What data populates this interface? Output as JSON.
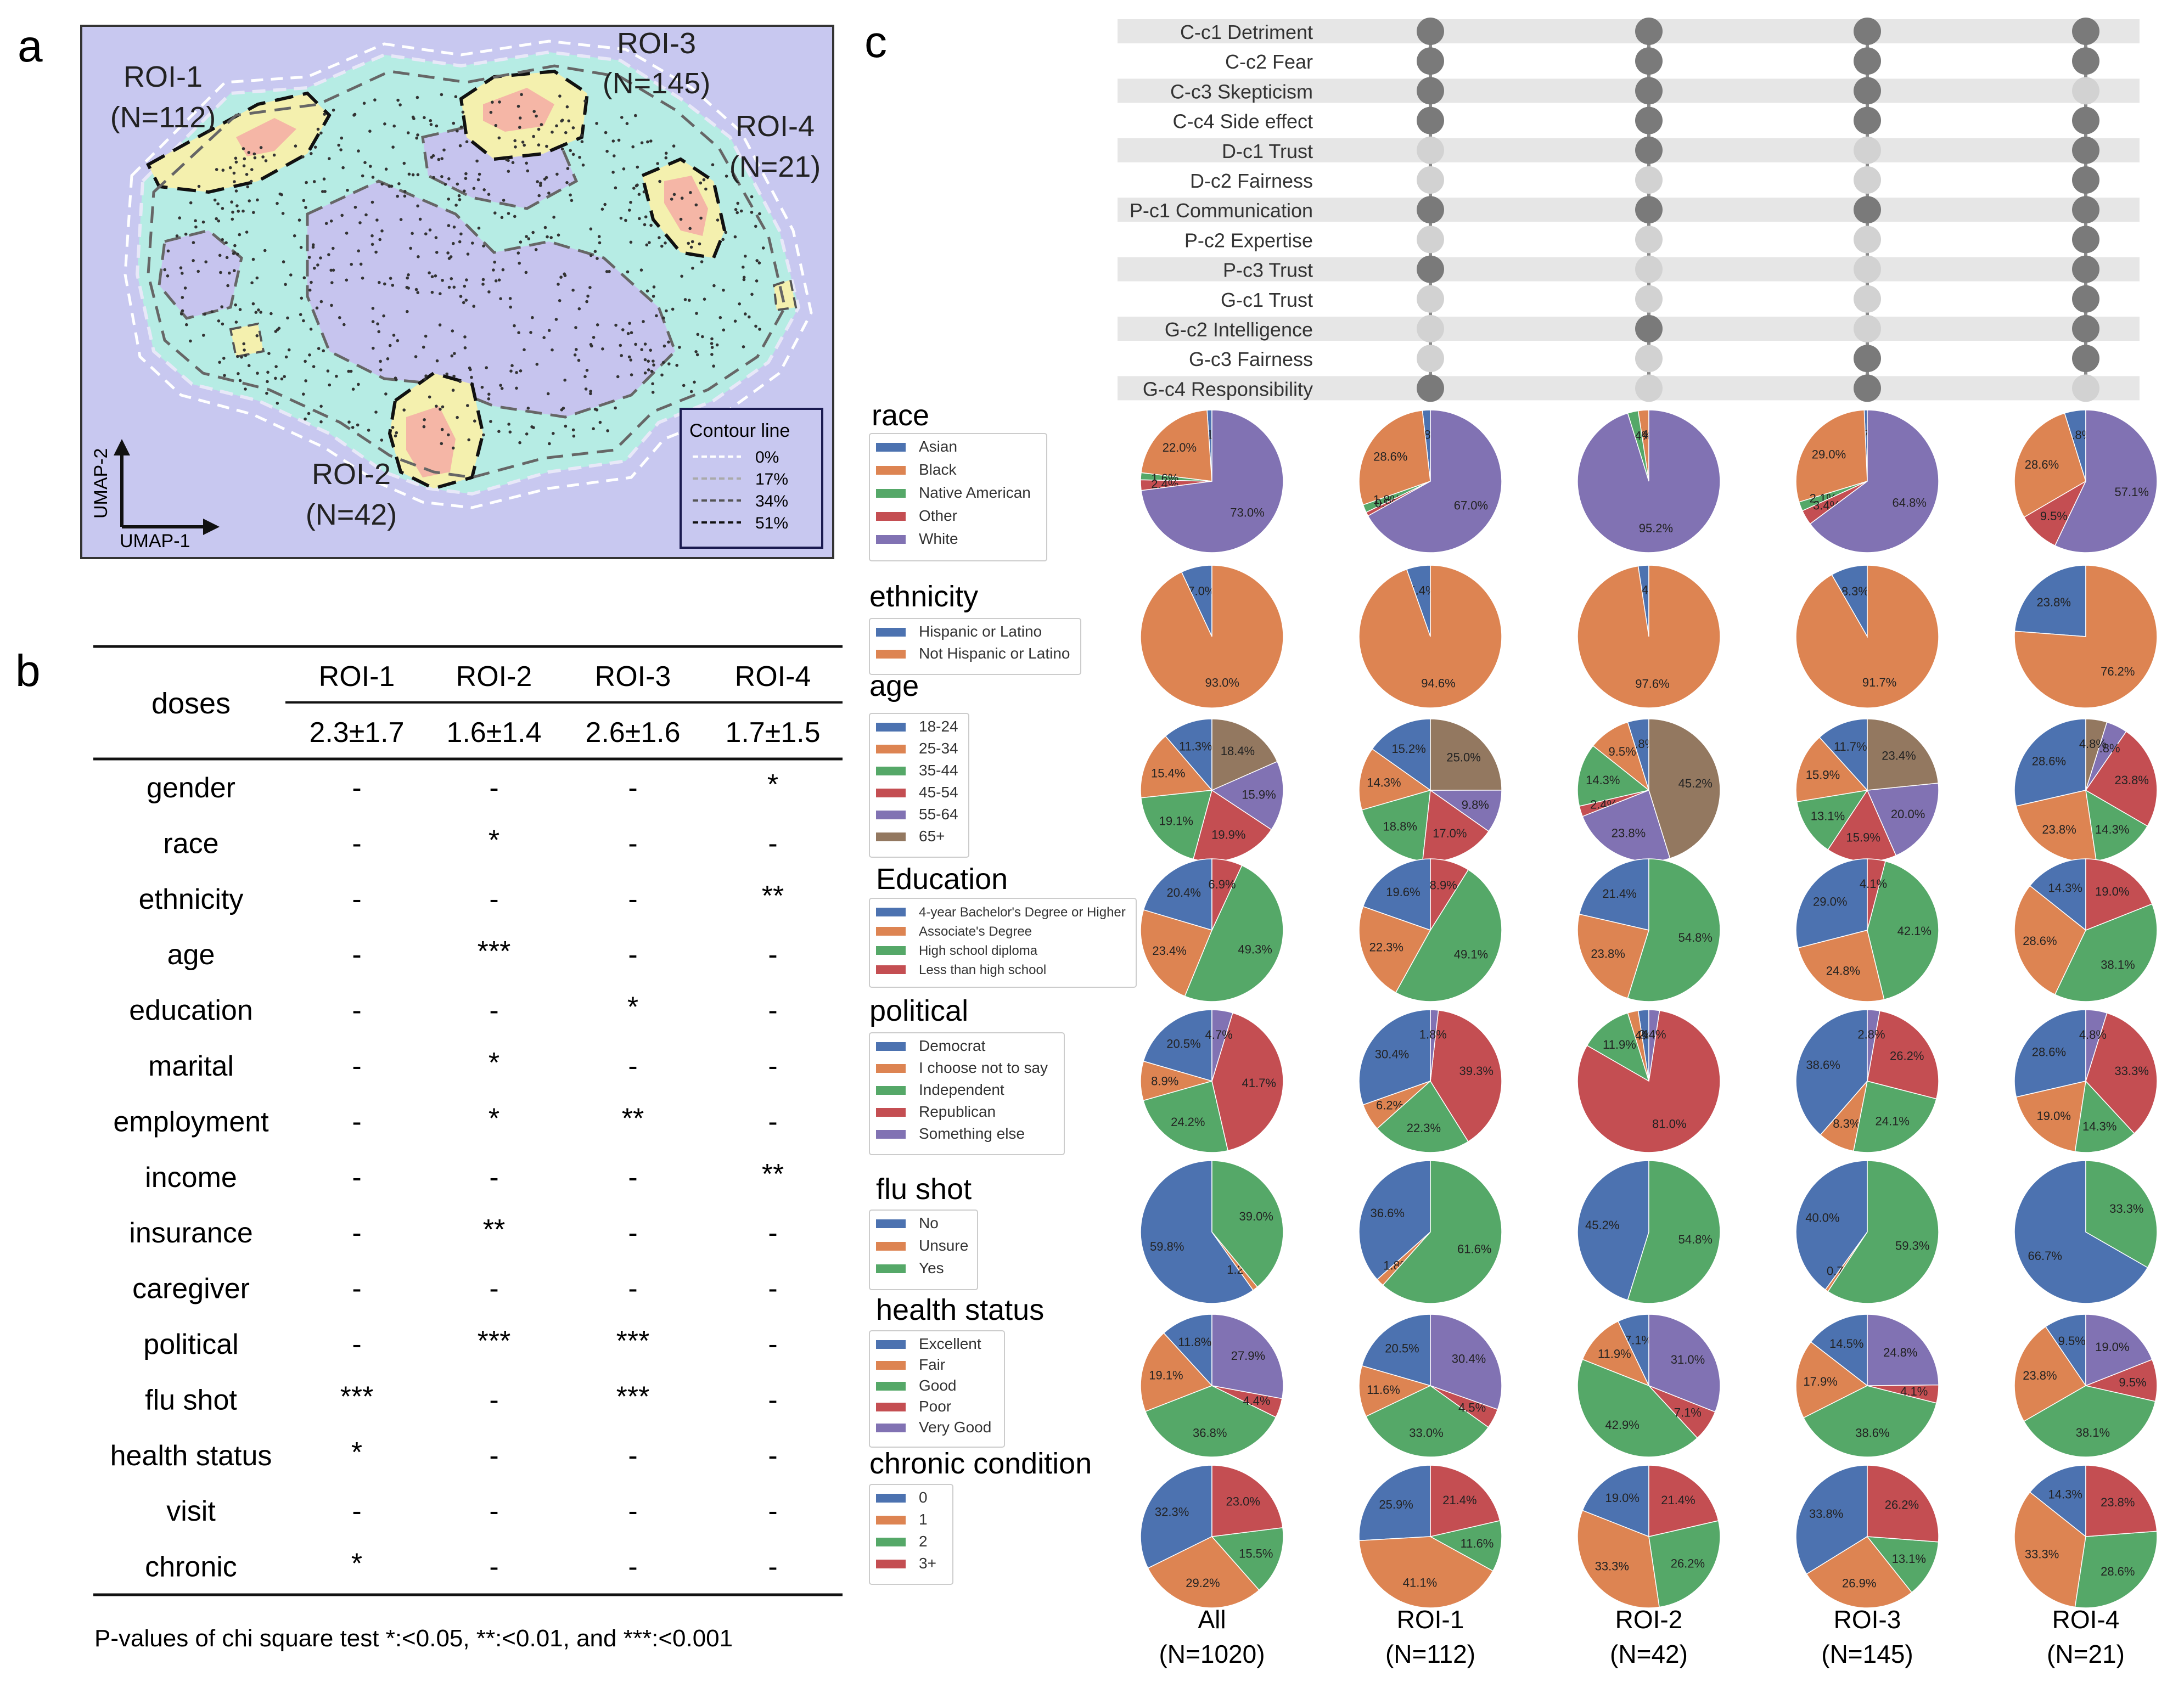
{
  "panel_labels": {
    "a": "a",
    "b": "b",
    "c": "c"
  },
  "panel_a": {
    "roi_labels": [
      {
        "name": "ROI-1",
        "n": "(N=112)"
      },
      {
        "name": "ROI-2",
        "n": "(N=42)"
      },
      {
        "name": "ROI-3",
        "n": "(N=145)"
      },
      {
        "name": "ROI-4",
        "n": "(N=21)"
      }
    ],
    "axis_x": "UMAP-1",
    "axis_y": "UMAP-2",
    "legend_title": "Contour line",
    "contour_levels": [
      "0%",
      "17%",
      "34%",
      "51%"
    ],
    "colors": {
      "background": "#c8c8f0",
      "low": "#b6ece4",
      "mid": "#f4f0ae",
      "high": "#f5b6a6"
    }
  },
  "panel_b": {
    "corner_label": "doses",
    "columns": [
      "ROI-1",
      "ROI-2",
      "ROI-3",
      "ROI-4"
    ],
    "doses": [
      "2.3±1.7",
      "1.6±1.4",
      "2.6±1.6",
      "1.7±1.5"
    ],
    "rows": [
      {
        "name": "gender",
        "values": [
          "-",
          "-",
          "-",
          "*"
        ]
      },
      {
        "name": "race",
        "values": [
          "-",
          "*",
          "-",
          "-"
        ]
      },
      {
        "name": "ethnicity",
        "values": [
          "-",
          "-",
          "-",
          "**"
        ]
      },
      {
        "name": "age",
        "values": [
          "-",
          "***",
          "-",
          "-"
        ]
      },
      {
        "name": "education",
        "values": [
          "-",
          "-",
          "*",
          "-"
        ]
      },
      {
        "name": "marital",
        "values": [
          "-",
          "*",
          "-",
          "-"
        ]
      },
      {
        "name": "employment",
        "values": [
          "-",
          "*",
          "**",
          "-"
        ]
      },
      {
        "name": "income",
        "values": [
          "-",
          "-",
          "-",
          "**"
        ]
      },
      {
        "name": "insurance",
        "values": [
          "-",
          "**",
          "-",
          "-"
        ]
      },
      {
        "name": "caregiver",
        "values": [
          "-",
          "-",
          "-",
          "-"
        ]
      },
      {
        "name": "political",
        "values": [
          "-",
          "***",
          "***",
          "-"
        ]
      },
      {
        "name": "flu shot",
        "values": [
          "***",
          "-",
          "***",
          "-"
        ]
      },
      {
        "name": "health status",
        "values": [
          "*",
          "-",
          "-",
          "-"
        ]
      },
      {
        "name": "visit",
        "values": [
          "-",
          "-",
          "-",
          "-"
        ]
      },
      {
        "name": "chronic",
        "values": [
          "*",
          "-",
          "-",
          "-"
        ]
      }
    ],
    "footnote": "P-values of chi square test *:<0.05, **:<0.01, and ***:<0.001"
  },
  "chart_data": {
    "type": "pie",
    "groups": [
      {
        "name": "All",
        "n": "(N=1020)"
      },
      {
        "name": "ROI-1",
        "n": "(N=112)"
      },
      {
        "name": "ROI-2",
        "n": "(N=42)"
      },
      {
        "name": "ROI-3",
        "n": "(N=145)"
      },
      {
        "name": "ROI-4",
        "n": "(N=21)"
      }
    ],
    "constructs": [
      "C-c1 Detriment",
      "C-c2 Fear",
      "C-c3 Skepticism",
      "C-c4 Side effect",
      "D-c1 Trust",
      "D-c2 Fairness",
      "P-c1 Communication",
      "P-c2 Expertise",
      "P-c3 Trust",
      "G-c1 Trust",
      "G-c2 Intelligence",
      "G-c3 Fairness",
      "G-c4 Responsibility"
    ],
    "construct_dots": [
      [
        1,
        1,
        1,
        1,
        0,
        0,
        1,
        0,
        1,
        0,
        0,
        0,
        1
      ],
      [
        1,
        1,
        1,
        1,
        1,
        0,
        1,
        0,
        0,
        0,
        1,
        0,
        0
      ],
      [
        1,
        1,
        1,
        1,
        0,
        0,
        1,
        0,
        0,
        0,
        0,
        1,
        1
      ],
      [
        1,
        1,
        0,
        1,
        1,
        1,
        1,
        1,
        1,
        1,
        1,
        1,
        0
      ]
    ],
    "dot_colors": {
      "on": "#7a7a7a",
      "off": "#d2d2d2",
      "line": "#8a8a8a"
    },
    "variables": [
      {
        "title": "race",
        "categories": [
          "Asian",
          "Black",
          "Native American",
          "Other",
          "White"
        ],
        "colors": [
          "#4c72b0",
          "#dd8452",
          "#55a868",
          "#c44e52",
          "#8172b3"
        ],
        "values": [
          [
            1.1,
            22.0,
            1.6,
            2.4,
            73.0
          ],
          [
            1.8,
            28.6,
            1.8,
            0.9,
            67.0
          ],
          [
            0,
            2.4,
            2.4,
            0,
            95.2
          ],
          [
            0.7,
            29.0,
            2.1,
            3.4,
            64.8
          ],
          [
            4.8,
            28.6,
            0,
            9.5,
            57.1
          ]
        ]
      },
      {
        "title": "ethnicity",
        "categories": [
          "Hispanic or Latino",
          "Not Hispanic or Latino"
        ],
        "colors": [
          "#4c72b0",
          "#dd8452"
        ],
        "values": [
          [
            7.0,
            93.0
          ],
          [
            5.4,
            94.6
          ],
          [
            2.4,
            97.6
          ],
          [
            8.3,
            91.7
          ],
          [
            23.8,
            76.2
          ]
        ]
      },
      {
        "title": "age",
        "categories": [
          "18-24",
          "25-34",
          "35-44",
          "45-54",
          "55-64",
          "65+"
        ],
        "colors": [
          "#4c72b0",
          "#dd8452",
          "#55a868",
          "#c44e52",
          "#8172b3",
          "#937860"
        ],
        "values": [
          [
            11.3,
            15.4,
            19.1,
            19.9,
            15.9,
            18.4
          ],
          [
            15.2,
            14.3,
            18.8,
            17.0,
            9.8,
            25.0
          ],
          [
            4.8,
            9.5,
            14.3,
            2.4,
            23.8,
            45.2
          ],
          [
            11.7,
            15.9,
            13.1,
            15.9,
            20.0,
            23.4
          ],
          [
            28.6,
            23.8,
            14.3,
            23.8,
            4.8,
            4.8
          ]
        ]
      },
      {
        "title": "Education",
        "categories": [
          "4-year Bachelor's Degree or Higher",
          "Associate's Degree",
          "High school diploma",
          "Less than high school"
        ],
        "colors": [
          "#4c72b0",
          "#dd8452",
          "#55a868",
          "#c44e52"
        ],
        "values": [
          [
            20.4,
            23.4,
            49.3,
            6.9
          ],
          [
            19.6,
            22.3,
            49.1,
            8.9
          ],
          [
            21.4,
            23.8,
            54.8,
            0.0
          ],
          [
            29.0,
            24.8,
            42.1,
            4.1
          ],
          [
            14.3,
            28.6,
            38.1,
            19.0
          ]
        ]
      },
      {
        "title": "political",
        "categories": [
          "Democrat",
          "I choose not to say",
          "Independent",
          "Republican",
          "Something else"
        ],
        "colors": [
          "#4c72b0",
          "#dd8452",
          "#55a868",
          "#c44e52",
          "#8172b3"
        ],
        "values": [
          [
            20.5,
            8.9,
            24.2,
            41.7,
            4.7
          ],
          [
            30.4,
            6.2,
            22.3,
            39.3,
            1.8
          ],
          [
            2.4,
            2.4,
            11.9,
            81.0,
            2.4
          ],
          [
            38.6,
            8.3,
            24.1,
            26.2,
            2.8
          ],
          [
            28.6,
            19.0,
            14.3,
            33.3,
            4.8
          ]
        ]
      },
      {
        "title": "flu shot",
        "categories": [
          "No",
          "Unsure",
          "Yes"
        ],
        "colors": [
          "#4c72b0",
          "#dd8452",
          "#55a868"
        ],
        "values": [
          [
            59.8,
            1.2,
            39.0
          ],
          [
            36.6,
            1.8,
            61.6
          ],
          [
            45.2,
            0.0,
            54.8
          ],
          [
            40.0,
            0.7,
            59.3
          ],
          [
            66.7,
            0.0,
            33.3
          ]
        ]
      },
      {
        "title": "health status",
        "categories": [
          "Excellent",
          "Fair",
          "Good",
          "Poor",
          "Very Good"
        ],
        "colors": [
          "#4c72b0",
          "#dd8452",
          "#55a868",
          "#c44e52",
          "#8172b3"
        ],
        "values": [
          [
            11.8,
            19.1,
            36.8,
            4.4,
            27.9
          ],
          [
            20.5,
            11.6,
            33.0,
            4.5,
            30.4
          ],
          [
            7.1,
            11.9,
            42.9,
            7.1,
            31.0
          ],
          [
            14.5,
            17.9,
            38.6,
            4.1,
            24.8
          ],
          [
            9.5,
            23.8,
            38.1,
            9.5,
            19.0
          ]
        ]
      },
      {
        "title": "chronic condition",
        "categories": [
          "0",
          "1",
          "2",
          "3+"
        ],
        "colors": [
          "#4c72b0",
          "#dd8452",
          "#55a868",
          "#c44e52"
        ],
        "values": [
          [
            32.3,
            29.2,
            15.5,
            23.0
          ],
          [
            25.9,
            41.1,
            11.6,
            21.4
          ],
          [
            19.0,
            33.3,
            26.2,
            21.4
          ],
          [
            33.8,
            26.9,
            13.1,
            26.2
          ],
          [
            14.3,
            33.3,
            28.6,
            23.8
          ]
        ]
      }
    ]
  }
}
